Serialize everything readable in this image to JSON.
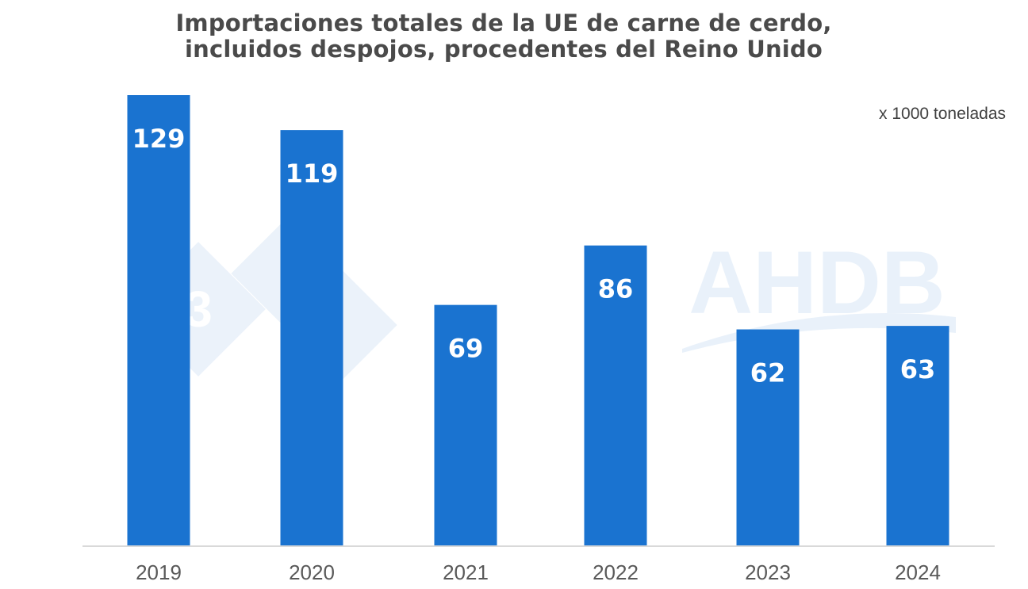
{
  "title_line1": "Importaciones totales de la UE de carne de cerdo,",
  "title_line2": "incluidos  despojos, procedentes del Reino Unido",
  "unit_label": "x 1000 toneladas",
  "watermark_text": "AHDB",
  "watermark_badge": "3",
  "colors": {
    "bar": "#1a73d0",
    "label": "#ffffff",
    "axis": "#d9d9d9",
    "tick": "#595959",
    "watermark": "#dbe9f7"
  },
  "chart_data": {
    "type": "bar",
    "title": "Importaciones totales de la UE de carne de cerdo, incluidos  despojos, procedentes del Reino Unido",
    "categories": [
      "2019",
      "2020",
      "2021",
      "2022",
      "2023",
      "2024"
    ],
    "values": [
      129,
      119,
      69,
      86,
      62,
      63
    ],
    "ylabel": "x 1000 toneladas",
    "xlabel": "",
    "ylim": [
      0,
      129
    ],
    "grid": false,
    "legend": "none",
    "data_labels": [
      "129",
      "119",
      "69",
      "86",
      "62",
      "63"
    ]
  }
}
